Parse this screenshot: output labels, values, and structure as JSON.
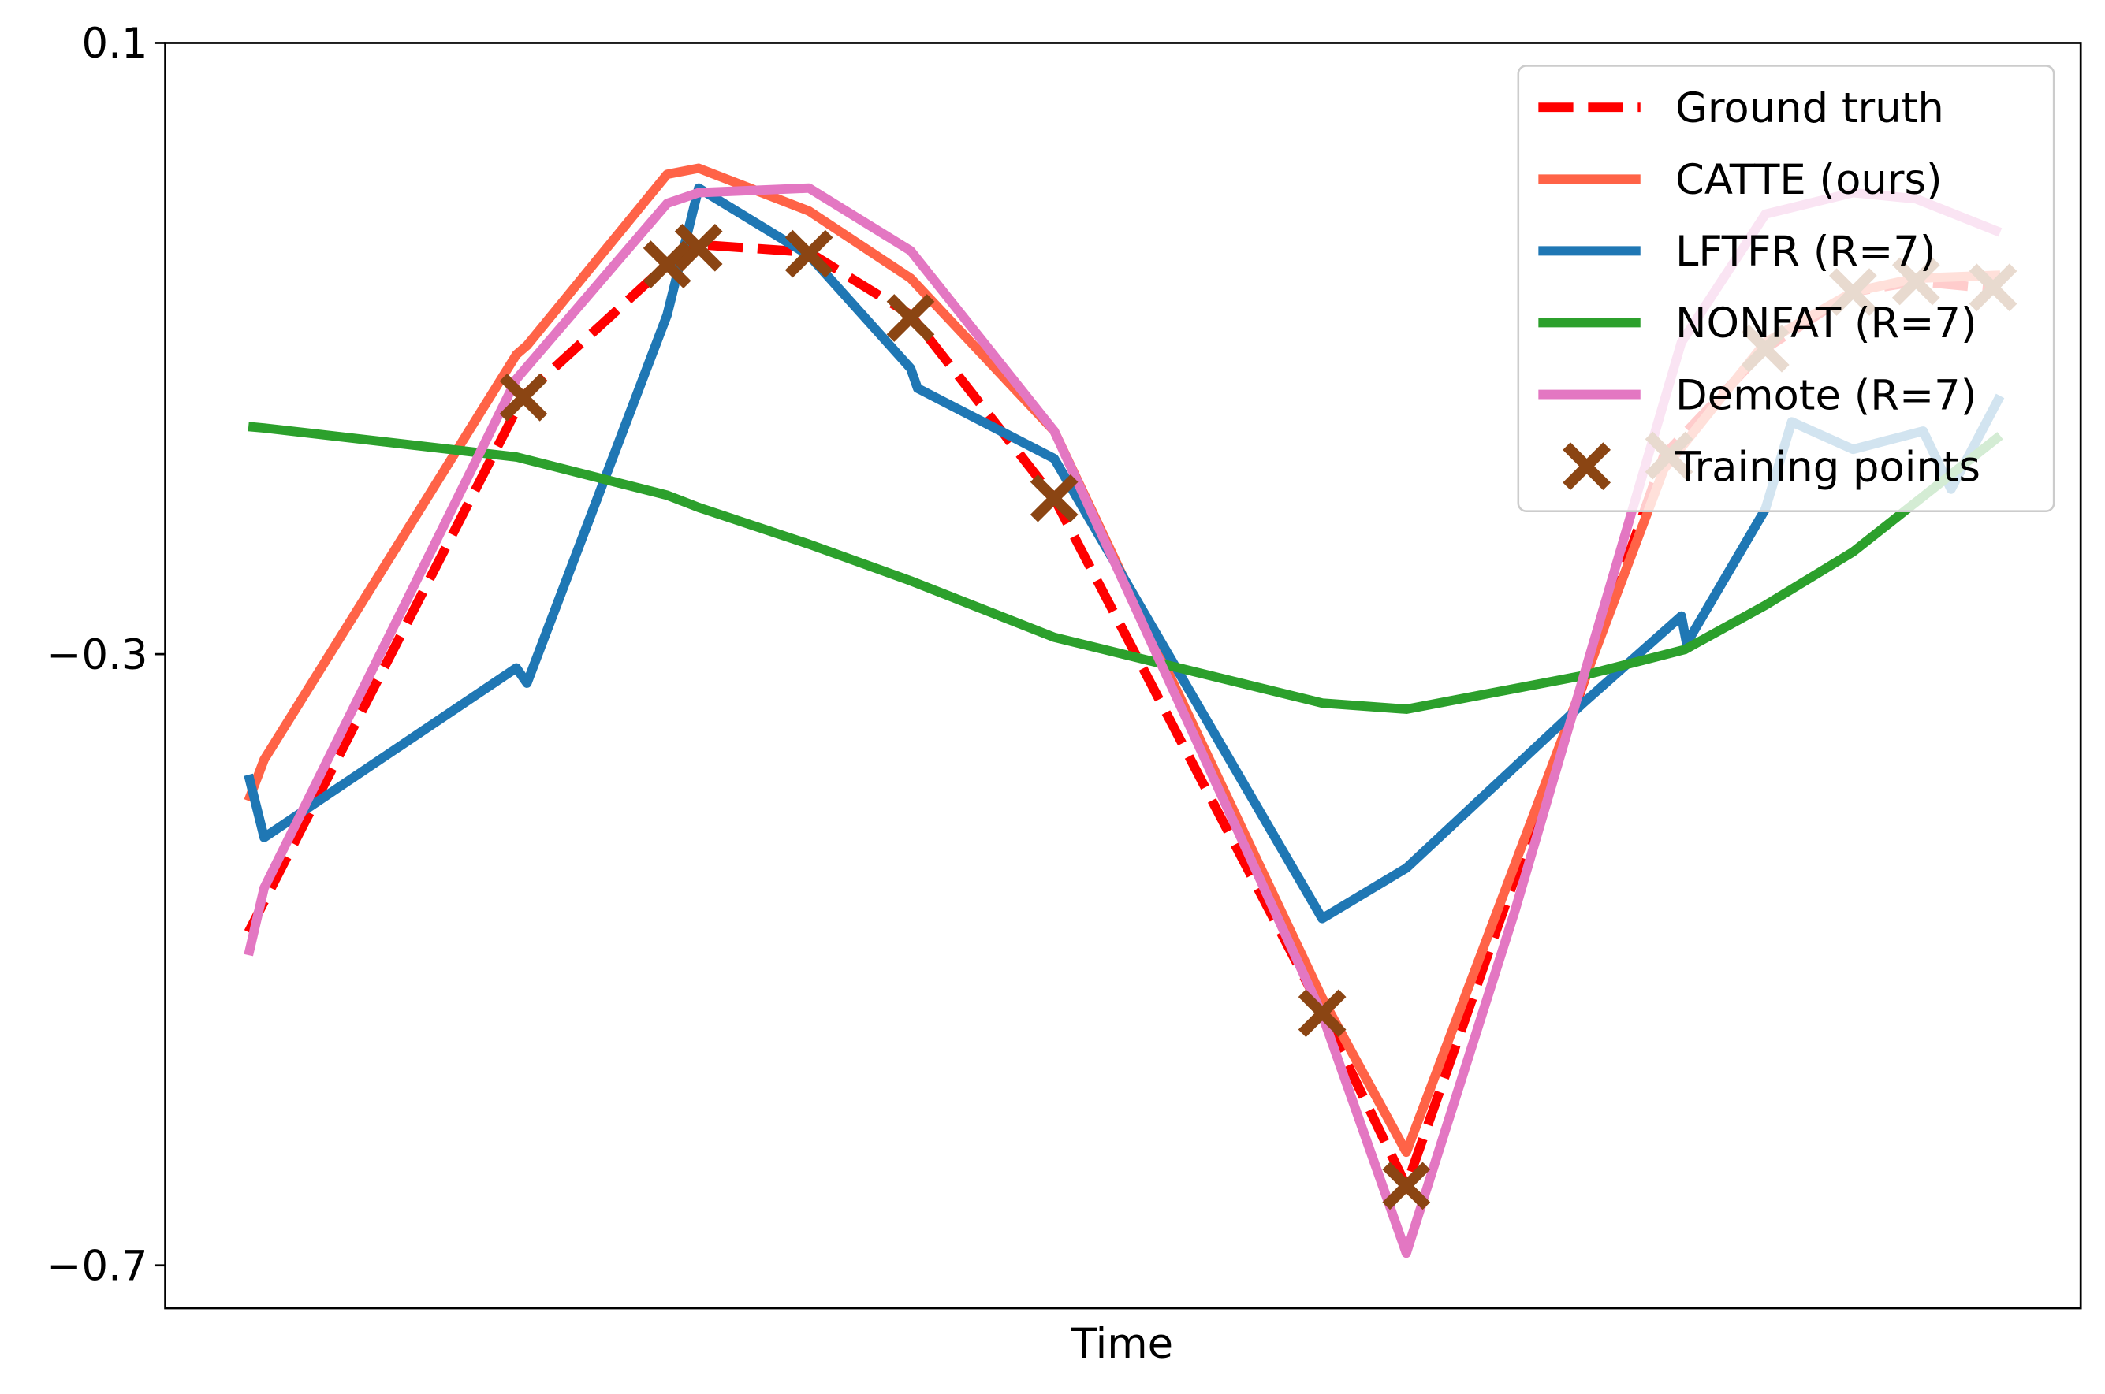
{
  "chart_data": {
    "type": "line",
    "title": "",
    "xlabel": "Time",
    "ylabel": "",
    "xlim": [
      -0.0475,
      1.046
    ],
    "ylim": [
      -0.728,
      0.1
    ],
    "yticks": [
      0.1,
      -0.3,
      -0.7
    ],
    "ytick_labels": [
      "0.1",
      "−0.3",
      "−0.7"
    ],
    "grid": false,
    "legend_position": "top-right",
    "series": [
      {
        "name": "Ground truth",
        "color": "#ff0000",
        "style": "dashed",
        "x": [
          0,
          0.157,
          0.239,
          0.257,
          0.32,
          0.378,
          0.46,
          0.613,
          0.661,
          0.808,
          0.866,
          0.916,
          0.952,
          0.998
        ],
        "y": [
          -0.482,
          -0.131,
          -0.045,
          -0.032,
          -0.037,
          -0.078,
          -0.198,
          -0.534,
          -0.648,
          -0.17,
          -0.1,
          -0.063,
          -0.056,
          -0.061
        ]
      },
      {
        "name": "CATTE (ours)",
        "color": "#ff6347",
        "style": "solid",
        "x": [
          0,
          0.009,
          0.153,
          0.159,
          0.239,
          0.257,
          0.32,
          0.378,
          0.46,
          0.613,
          0.661,
          0.808,
          0.866,
          0.916,
          0.952,
          1.0
        ],
        "y": [
          -0.396,
          -0.369,
          -0.104,
          -0.098,
          0.014,
          0.018,
          -0.01,
          -0.054,
          -0.154,
          -0.525,
          -0.626,
          -0.179,
          -0.096,
          -0.063,
          -0.054,
          -0.052
        ]
      },
      {
        "name": "LFTFR (R=7)",
        "color": "#1f77b4",
        "style": "solid",
        "x": [
          0,
          0.009,
          0.153,
          0.159,
          0.239,
          0.257,
          0.32,
          0.378,
          0.382,
          0.46,
          0.613,
          0.661,
          0.762,
          0.818,
          0.821,
          0.866,
          0.881,
          0.916,
          0.956,
          0.972,
          1.0
        ],
        "y": [
          -0.379,
          -0.42,
          -0.309,
          -0.319,
          -0.078,
          0.005,
          -0.039,
          -0.113,
          -0.126,
          -0.172,
          -0.473,
          -0.44,
          -0.332,
          -0.275,
          -0.293,
          -0.205,
          -0.148,
          -0.166,
          -0.154,
          -0.192,
          -0.131
        ]
      },
      {
        "name": "NONFAT (R=7)",
        "color": "#2ca02c",
        "style": "solid",
        "x": [
          0,
          0.009,
          0.153,
          0.239,
          0.257,
          0.32,
          0.378,
          0.46,
          0.613,
          0.661,
          0.762,
          0.82,
          0.866,
          0.916,
          1.0
        ],
        "y": [
          -0.151,
          -0.152,
          -0.171,
          -0.196,
          -0.204,
          -0.228,
          -0.252,
          -0.289,
          -0.332,
          -0.336,
          -0.314,
          -0.297,
          -0.268,
          -0.233,
          -0.157
        ]
      },
      {
        "name": "Demote (R=7)",
        "color": "#e377c2",
        "style": "solid",
        "x": [
          0,
          0.009,
          0.153,
          0.239,
          0.257,
          0.32,
          0.378,
          0.46,
          0.613,
          0.661,
          0.723,
          0.818,
          0.866,
          0.916,
          0.952,
          1.0
        ],
        "y": [
          -0.497,
          -0.453,
          -0.12,
          -0.005,
          0.002,
          0.005,
          -0.036,
          -0.154,
          -0.536,
          -0.692,
          -0.468,
          -0.096,
          -0.012,
          0.002,
          -0.002,
          -0.024
        ]
      }
    ],
    "training_points": {
      "name": "Training points",
      "color": "#8b4513",
      "marker": "x",
      "x": [
        0.157,
        0.239,
        0.257,
        0.32,
        0.378,
        0.46,
        0.613,
        0.661,
        0.811,
        0.866,
        0.916,
        0.952,
        0.996
      ],
      "y": [
        -0.132,
        -0.045,
        -0.034,
        -0.038,
        -0.08,
        -0.198,
        -0.535,
        -0.648,
        -0.17,
        -0.1,
        -0.063,
        -0.056,
        -0.06
      ]
    }
  }
}
